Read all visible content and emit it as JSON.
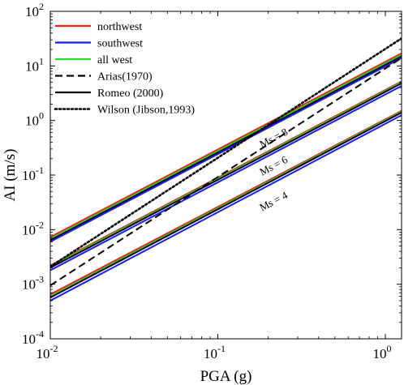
{
  "chart_data": {
    "type": "line",
    "title": "",
    "xlabel": "PGA (g)",
    "ylabel": "AI (m/s)",
    "x_scale": "log",
    "y_scale": "log",
    "xlim": [
      0.01,
      1.25
    ],
    "ylim": [
      0.0001,
      100
    ],
    "grid": false,
    "legend_position": "top-left",
    "x_ticks": [
      {
        "value": 0.01,
        "base": "10",
        "exp": "-2"
      },
      {
        "value": 0.1,
        "base": "10",
        "exp": "-1"
      },
      {
        "value": 1,
        "base": "10",
        "exp": "0"
      }
    ],
    "y_ticks": [
      {
        "value": 0.0001,
        "base": "10",
        "exp": "-4"
      },
      {
        "value": 0.001,
        "base": "10",
        "exp": "-3"
      },
      {
        "value": 0.01,
        "base": "10",
        "exp": "-2"
      },
      {
        "value": 0.1,
        "base": "10",
        "exp": "-1"
      },
      {
        "value": 1,
        "base": "10",
        "exp": "0"
      },
      {
        "value": 10,
        "base": "10",
        "exp": "1"
      },
      {
        "value": 100,
        "base": "10",
        "exp": "2"
      }
    ],
    "legend": [
      {
        "label": "northwest",
        "color": "#e8201e",
        "dash": "solid"
      },
      {
        "label": "southwest",
        "color": "#1a1aff",
        "dash": "solid"
      },
      {
        "label": "all west",
        "color": "#22dd22",
        "dash": "solid"
      },
      {
        "label": "Arias(1970)",
        "color": "#000000",
        "dash": "dashed"
      },
      {
        "label": "Romeo (2000)",
        "color": "#000000",
        "dash": "solid"
      },
      {
        "label": "Wilson (Jibson,1993)",
        "color": "#000000",
        "dash": "dotted"
      }
    ],
    "series": [
      {
        "group": "Ms = 8",
        "legend_ref": "northwest",
        "color": "#e8201e",
        "dash": "solid",
        "x": [
          0.01,
          1.25
        ],
        "y": [
          0.0073,
          17.0
        ]
      },
      {
        "group": "Ms = 8",
        "legend_ref": "all west",
        "color": "#22dd22",
        "dash": "solid",
        "x": [
          0.01,
          1.25
        ],
        "y": [
          0.0068,
          16.0
        ]
      },
      {
        "group": "Ms = 8",
        "legend_ref": "Romeo (2000)",
        "color": "#000000",
        "dash": "solid",
        "x": [
          0.01,
          1.25
        ],
        "y": [
          0.0064,
          15.0
        ]
      },
      {
        "group": "Ms = 8",
        "legend_ref": "southwest",
        "color": "#1a1aff",
        "dash": "solid",
        "x": [
          0.01,
          1.25
        ],
        "y": [
          0.006,
          14.0
        ]
      },
      {
        "group": "Ms = 6",
        "legend_ref": "northwest",
        "color": "#e8201e",
        "dash": "solid",
        "x": [
          0.01,
          1.25
        ],
        "y": [
          0.0022,
          5.2
        ]
      },
      {
        "group": "Ms = 6",
        "legend_ref": "all west",
        "color": "#22dd22",
        "dash": "solid",
        "x": [
          0.01,
          1.25
        ],
        "y": [
          0.0021,
          5.0
        ]
      },
      {
        "group": "Ms = 6",
        "legend_ref": "Romeo (2000)",
        "color": "#000000",
        "dash": "solid",
        "x": [
          0.01,
          1.25
        ],
        "y": [
          0.002,
          4.8
        ]
      },
      {
        "group": "Ms = 6",
        "legend_ref": "southwest",
        "color": "#1a1aff",
        "dash": "solid",
        "x": [
          0.01,
          1.25
        ],
        "y": [
          0.0018,
          4.3
        ]
      },
      {
        "group": "Ms = 4",
        "legend_ref": "northwest",
        "color": "#e8201e",
        "dash": "solid",
        "x": [
          0.01,
          1.25
        ],
        "y": [
          0.00065,
          1.5
        ]
      },
      {
        "group": "Ms = 4",
        "legend_ref": "all west",
        "color": "#22dd22",
        "dash": "solid",
        "x": [
          0.01,
          1.25
        ],
        "y": [
          0.0006,
          1.45
        ]
      },
      {
        "group": "Ms = 4",
        "legend_ref": "Romeo (2000)",
        "color": "#000000",
        "dash": "solid",
        "x": [
          0.01,
          1.25
        ],
        "y": [
          0.00057,
          1.4
        ]
      },
      {
        "group": "Ms = 4",
        "legend_ref": "southwest",
        "color": "#1a1aff",
        "dash": "solid",
        "x": [
          0.01,
          1.25
        ],
        "y": [
          0.0005,
          1.25
        ]
      },
      {
        "group": "",
        "legend_ref": "Arias(1970)",
        "color": "#000000",
        "dash": "dashed",
        "x": [
          0.01,
          1.25
        ],
        "y": [
          0.00095,
          14.0
        ]
      },
      {
        "group": "",
        "legend_ref": "Wilson (Jibson,1993)",
        "color": "#000000",
        "dash": "dotted",
        "x": [
          0.01,
          1.25
        ],
        "y": [
          0.0021,
          32.0
        ]
      }
    ],
    "annotations": [
      {
        "text": "Ms = 8",
        "x": 0.22,
        "y": 0.42,
        "rotation_follows_slope": true
      },
      {
        "text": "Ms = 6",
        "x": 0.22,
        "y": 0.13,
        "rotation_follows_slope": true
      },
      {
        "text": "Ms = 4",
        "x": 0.22,
        "y": 0.029,
        "rotation_follows_slope": true
      }
    ]
  }
}
